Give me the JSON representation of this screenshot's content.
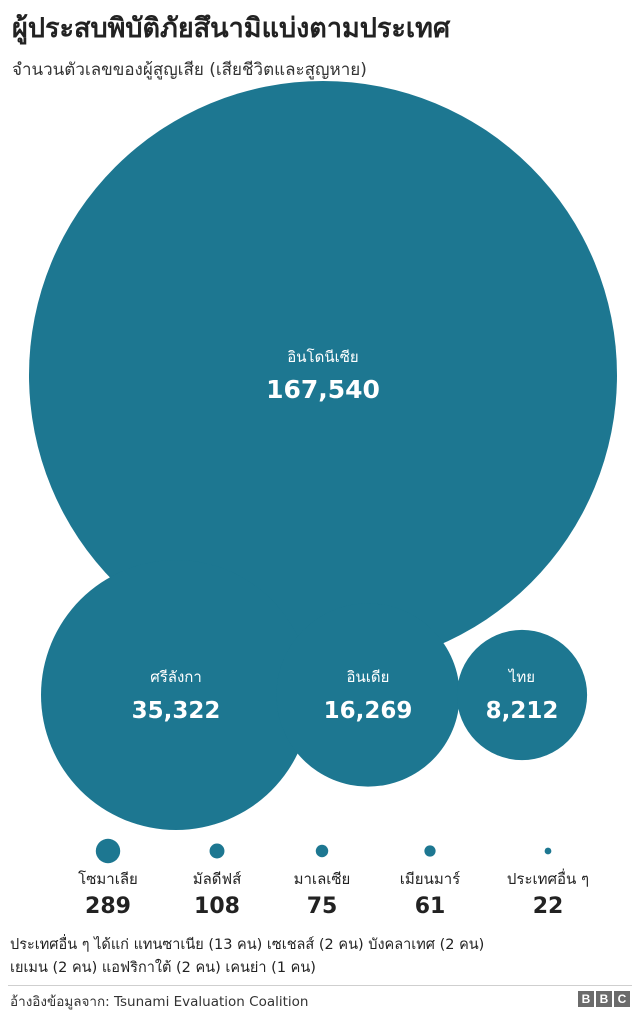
{
  "title": "ผู้ประสบพิบัติภัยสึนามิแบ่งตามประเทศ",
  "subtitle": "จำนวนตัวเลขของผู้สูญเสีย (เสียชีวิตและสูญหาย)",
  "colors": {
    "bubble": "#1d7791",
    "text_on_bubble": "#ffffff",
    "value_text": "#222222"
  },
  "chart_data": {
    "type": "bubble",
    "title": "ผู้ประสบพิบัติภัยสึนามิแบ่งตามประเทศ",
    "subtitle": "จำนวนตัวเลขของผู้สูญเสีย (เสียชีวิตและสูญหาย)",
    "series": [
      {
        "label": "อินโดนีเซีย",
        "value": 167540,
        "display": "167,540"
      },
      {
        "label": "ศรีลังกา",
        "value": 35322,
        "display": "35,322"
      },
      {
        "label": "อินเดีย",
        "value": 16269,
        "display": "16,269"
      },
      {
        "label": "ไทย",
        "value": 8212,
        "display": "8,212"
      },
      {
        "label": "โซมาเลีย",
        "value": 289,
        "display": "289"
      },
      {
        "label": "มัลดีฟส์",
        "value": 108,
        "display": "108"
      },
      {
        "label": "มาเลเซีย",
        "value": 75,
        "display": "75"
      },
      {
        "label": "เมียนมาร์",
        "value": 61,
        "display": "61"
      },
      {
        "label": "ประเทศอื่น ๆ",
        "value": 22,
        "display": "22"
      }
    ]
  },
  "note_lines": [
    "ประเทศอื่น ๆ ได้แก่ แทนซาเนีย (13 คน) เซเชลส์ (2 คน) บังคลาเทศ (2 คน)",
    "เยเมน (2 คน) แอฟริกาใต้ (2 คน) เคนย่า (1 คน)"
  ],
  "source": "อ้างอิงข้อมูลจาก: Tsunami Evaluation Coalition",
  "logo_letters": [
    "B",
    "B",
    "C"
  ]
}
